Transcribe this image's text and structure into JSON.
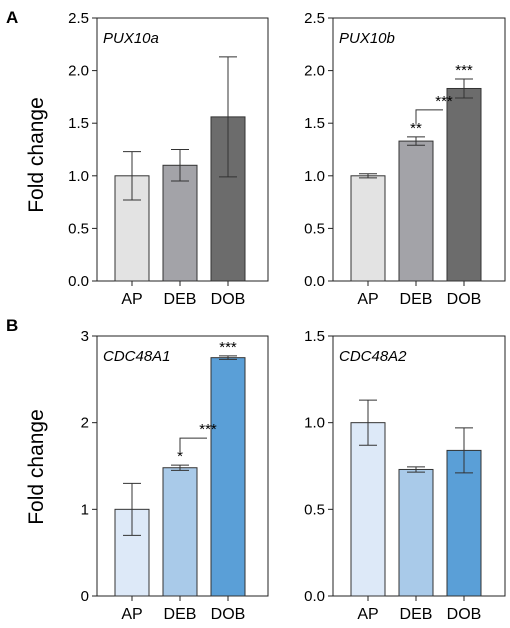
{
  "figure": {
    "panel_labels": [
      "A",
      "B"
    ],
    "ylabels": [
      "Fold change",
      "Fold change"
    ]
  },
  "chart_data": [
    {
      "type": "bar",
      "panel": "A",
      "title": "PUX10a",
      "categories": [
        "AP",
        "DEB",
        "DOB"
      ],
      "values": [
        1.0,
        1.1,
        1.56
      ],
      "error": [
        0.23,
        0.15,
        0.57
      ],
      "colors": [
        "#e3e3e3",
        "#a3a3a8",
        "#6c6c6c"
      ],
      "ylim": [
        0,
        2.5
      ],
      "yticks": [
        "0.0",
        "0.5",
        "1.0",
        "1.5",
        "2.0",
        "2.5"
      ],
      "ylabel": "Fold change",
      "significance": []
    },
    {
      "type": "bar",
      "panel": "A",
      "title": "PUX10b",
      "categories": [
        "AP",
        "DEB",
        "DOB"
      ],
      "values": [
        1.0,
        1.33,
        1.83
      ],
      "error": [
        0.02,
        0.04,
        0.09
      ],
      "colors": [
        "#e3e3e3",
        "#a3a3a8",
        "#6c6c6c"
      ],
      "ylim": [
        0,
        2.5
      ],
      "yticks": [
        "0.0",
        "0.5",
        "1.0",
        "1.5",
        "2.0",
        "2.5"
      ],
      "ylabel": "",
      "significance": [
        {
          "index": 1,
          "label": "**"
        },
        {
          "index": 2,
          "label": "***"
        },
        {
          "from": 1,
          "to": 2,
          "label": "***"
        }
      ]
    },
    {
      "type": "bar",
      "panel": "B",
      "title": "CDC48A1",
      "categories": [
        "AP",
        "DEB",
        "DOB"
      ],
      "values": [
        1.0,
        1.48,
        2.75
      ],
      "error": [
        0.3,
        0.03,
        0.02
      ],
      "colors": [
        "#dde9f8",
        "#a9cae9",
        "#5a9fd7"
      ],
      "ylim": [
        0,
        3
      ],
      "yticks": [
        "0",
        "1",
        "2",
        "3"
      ],
      "ylabel": "Fold change",
      "significance": [
        {
          "index": 1,
          "label": "*"
        },
        {
          "index": 2,
          "label": "***"
        },
        {
          "from": 1,
          "to": 2,
          "label": "***"
        }
      ]
    },
    {
      "type": "bar",
      "panel": "B",
      "title": "CDC48A2",
      "categories": [
        "AP",
        "DEB",
        "DOB"
      ],
      "values": [
        1.0,
        0.73,
        0.84
      ],
      "error": [
        0.13,
        0.015,
        0.13
      ],
      "colors": [
        "#dde9f8",
        "#a9cae9",
        "#5a9fd7"
      ],
      "ylim": [
        0,
        1.5
      ],
      "yticks": [
        "0.0",
        "0.5",
        "1.0",
        "1.5"
      ],
      "ylabel": "",
      "significance": []
    }
  ]
}
